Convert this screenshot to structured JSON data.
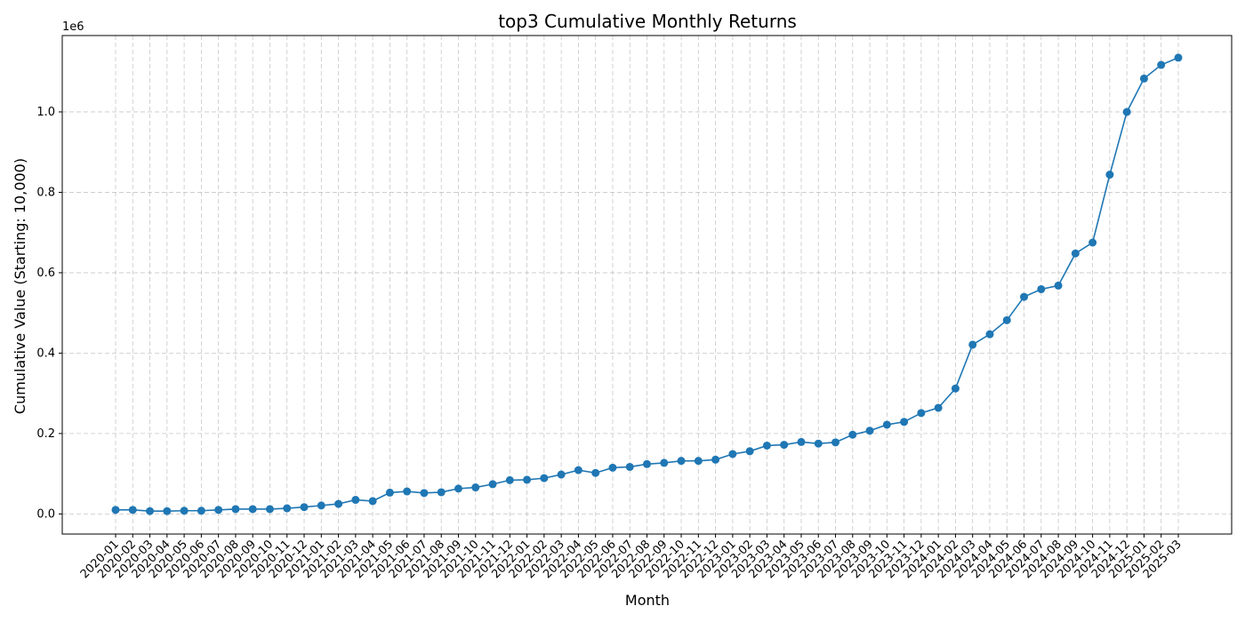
{
  "chart_data": {
    "type": "line",
    "title": "top3 Cumulative Monthly Returns",
    "xlabel": "Month",
    "ylabel": "Cumulative Value (Starting: 10,000)",
    "y_offset_label": "1e6",
    "y_ticks": [
      "0.0",
      "0.2",
      "0.4",
      "0.6",
      "0.8",
      "1.0"
    ],
    "y_tick_values": [
      0,
      200000,
      400000,
      600000,
      800000,
      1000000
    ],
    "ylim": [
      -50000,
      1190000
    ],
    "grid": true,
    "color": "#1f77b4",
    "categories": [
      "2020-01",
      "2020-02",
      "2020-03",
      "2020-04",
      "2020-05",
      "2020-06",
      "2020-07",
      "2020-08",
      "2020-09",
      "2020-10",
      "2020-11",
      "2020-12",
      "2021-01",
      "2021-02",
      "2021-03",
      "2021-04",
      "2021-05",
      "2021-06",
      "2021-07",
      "2021-08",
      "2021-09",
      "2021-10",
      "2021-11",
      "2021-12",
      "2022-01",
      "2022-02",
      "2022-03",
      "2022-04",
      "2022-05",
      "2022-06",
      "2022-07",
      "2022-08",
      "2022-09",
      "2022-10",
      "2022-11",
      "2022-12",
      "2023-01",
      "2023-02",
      "2023-03",
      "2023-04",
      "2023-05",
      "2023-06",
      "2023-07",
      "2023-08",
      "2023-09",
      "2023-10",
      "2023-11",
      "2023-12",
      "2024-01",
      "2024-02",
      "2024-03",
      "2024-04",
      "2024-05",
      "2024-06",
      "2024-07",
      "2024-08",
      "2024-09",
      "2024-10",
      "2024-11",
      "2024-12",
      "2025-01",
      "2025-02",
      "2025-03"
    ],
    "x_tick_labels": [
      "2020-01",
      "2020-02",
      "2020-03",
      "2020-04",
      "2020-05",
      "2020-06",
      "2020-07",
      "2020-08",
      "2020-09",
      "2020-10",
      "2020-11",
      "2020-12",
      "2021-01",
      "2021-02",
      "2021-03",
      "2021-04",
      "2021-05",
      "2021-06",
      "2021-07",
      "2021-08",
      "2021-09",
      "2021-10",
      "2021-11",
      "2021-12",
      "2022-01",
      "2022-02",
      "2022-03",
      "2022-04",
      "2022-05",
      "2022-06",
      "2022-07",
      "2022-08",
      "2022-09",
      "2022-10",
      "2022-11",
      "2022-12",
      "2023-01",
      "2023-02",
      "2023-03",
      "2023-04",
      "2023-05",
      "2023-06",
      "2023-07",
      "2023-08",
      "2023-09",
      "2023-10",
      "2023-11",
      "2023-12",
      "2024-01",
      "2024-02",
      "2024-03",
      "2024-04",
      "2024-05",
      "2024-06",
      "2024-07",
      "2024-08",
      "2024-09",
      "2024-10",
      "2024-11",
      "2024-12",
      "2025-01",
      "2025-02",
      "2025-03"
    ],
    "values": [
      10000,
      10000,
      7000,
      7000,
      8000,
      8000,
      10000,
      12000,
      12000,
      12000,
      14000,
      17000,
      21000,
      25000,
      35000,
      32000,
      53000,
      56000,
      52000,
      54000,
      63000,
      66000,
      74000,
      84000,
      85000,
      89000,
      98000,
      109000,
      102000,
      115000,
      117000,
      124000,
      127000,
      132000,
      132000,
      135000,
      149000,
      156000,
      170000,
      172000,
      179000,
      175000,
      178000,
      197000,
      207000,
      222000,
      229000,
      251000,
      264000,
      312000,
      421000,
      447000,
      482000,
      540000,
      559000,
      568000,
      648000,
      675000,
      844000,
      1000000,
      1083000,
      1117000,
      1135000
    ]
  }
}
